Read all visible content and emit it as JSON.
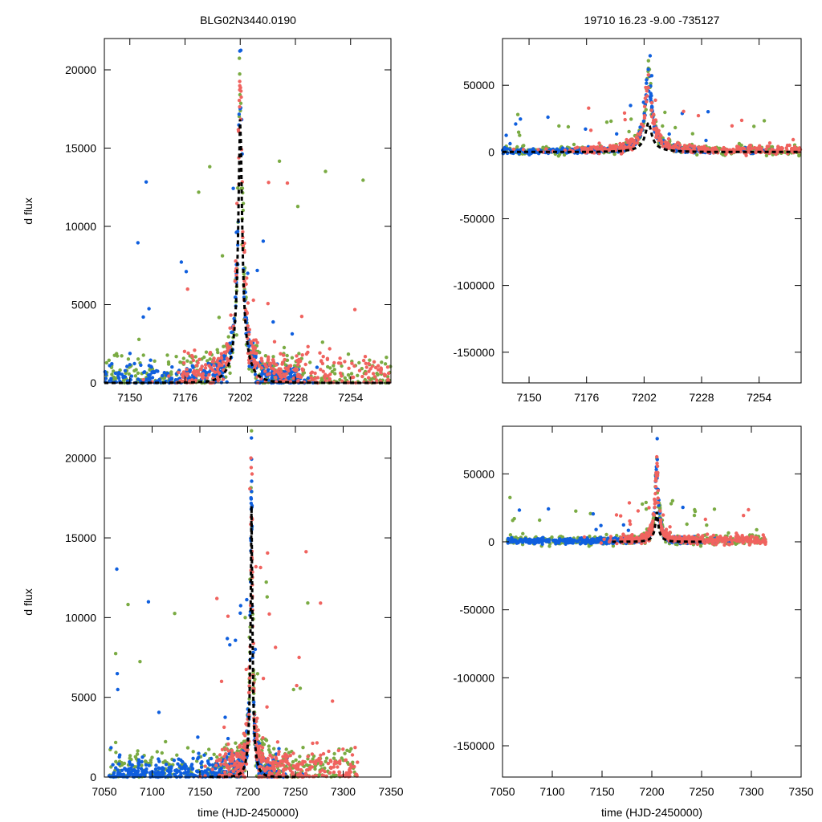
{
  "figure": {
    "title_left": "BLG02N3440.0190",
    "title_right": "19710  16.23  -9.00  -735127",
    "colors": {
      "green": "#7aab43",
      "blue": "#0f5fde",
      "red": "#f0635f",
      "model": "#000000"
    }
  },
  "chart_data": [
    {
      "type": "scatter",
      "panel": "top-left",
      "title": "BLG02N3440.0190",
      "xlabel": "",
      "ylabel": "d flux",
      "xlim": [
        7138,
        7273
      ],
      "ylim": [
        0,
        22000
      ],
      "xticks": [
        7150,
        7176,
        7202,
        7228,
        7254
      ],
      "yticks": [
        0,
        5000,
        10000,
        15000,
        20000
      ],
      "model": {
        "t0": 7202,
        "peak": 17000,
        "tE": 7.5,
        "style": "dashed"
      },
      "series": [
        {
          "name": "green",
          "baseline": 600,
          "core": [
            7138,
            7273
          ]
        },
        {
          "name": "blue",
          "baseline": 350,
          "core": [
            7138,
            7273
          ]
        },
        {
          "name": "red",
          "baseline": 700,
          "core": [
            7175,
            7273
          ]
        }
      ]
    },
    {
      "type": "scatter",
      "panel": "top-right",
      "title": "19710  16.23  -9.00  -735127",
      "xlabel": "",
      "ylabel": "",
      "xlim": [
        7138,
        7273
      ],
      "ylim": [
        -173000,
        85000
      ],
      "xticks": [
        7150,
        7176,
        7202,
        7228,
        7254
      ],
      "yticks": [
        -150000,
        -100000,
        -50000,
        0,
        50000
      ],
      "model": {
        "t0": 7204,
        "peak": 22000,
        "tE": 12,
        "style": "dashed"
      }
    },
    {
      "type": "scatter",
      "panel": "bottom-left",
      "xlabel": "time (HJD-2450000)",
      "ylabel": "d flux",
      "xlim": [
        7050,
        7350
      ],
      "ylim": [
        0,
        22000
      ],
      "xticks": [
        7050,
        7100,
        7150,
        7200,
        7250,
        7300,
        7350
      ],
      "yticks": [
        0,
        5000,
        10000,
        15000,
        20000
      ],
      "model": {
        "t0": 7204,
        "peak": 17000,
        "tE": 7.5,
        "style": "dashed"
      }
    },
    {
      "type": "scatter",
      "panel": "bottom-right",
      "xlabel": "time (HJD-2450000)",
      "ylabel": "",
      "xlim": [
        7050,
        7350
      ],
      "ylim": [
        -173000,
        85000
      ],
      "xticks": [
        7050,
        7100,
        7150,
        7200,
        7250,
        7300,
        7350
      ],
      "yticks": [
        -150000,
        -100000,
        -50000,
        0,
        50000
      ],
      "model": {
        "t0": 7205,
        "peak": 22000,
        "tE": 12,
        "style": "dashed"
      }
    }
  ]
}
